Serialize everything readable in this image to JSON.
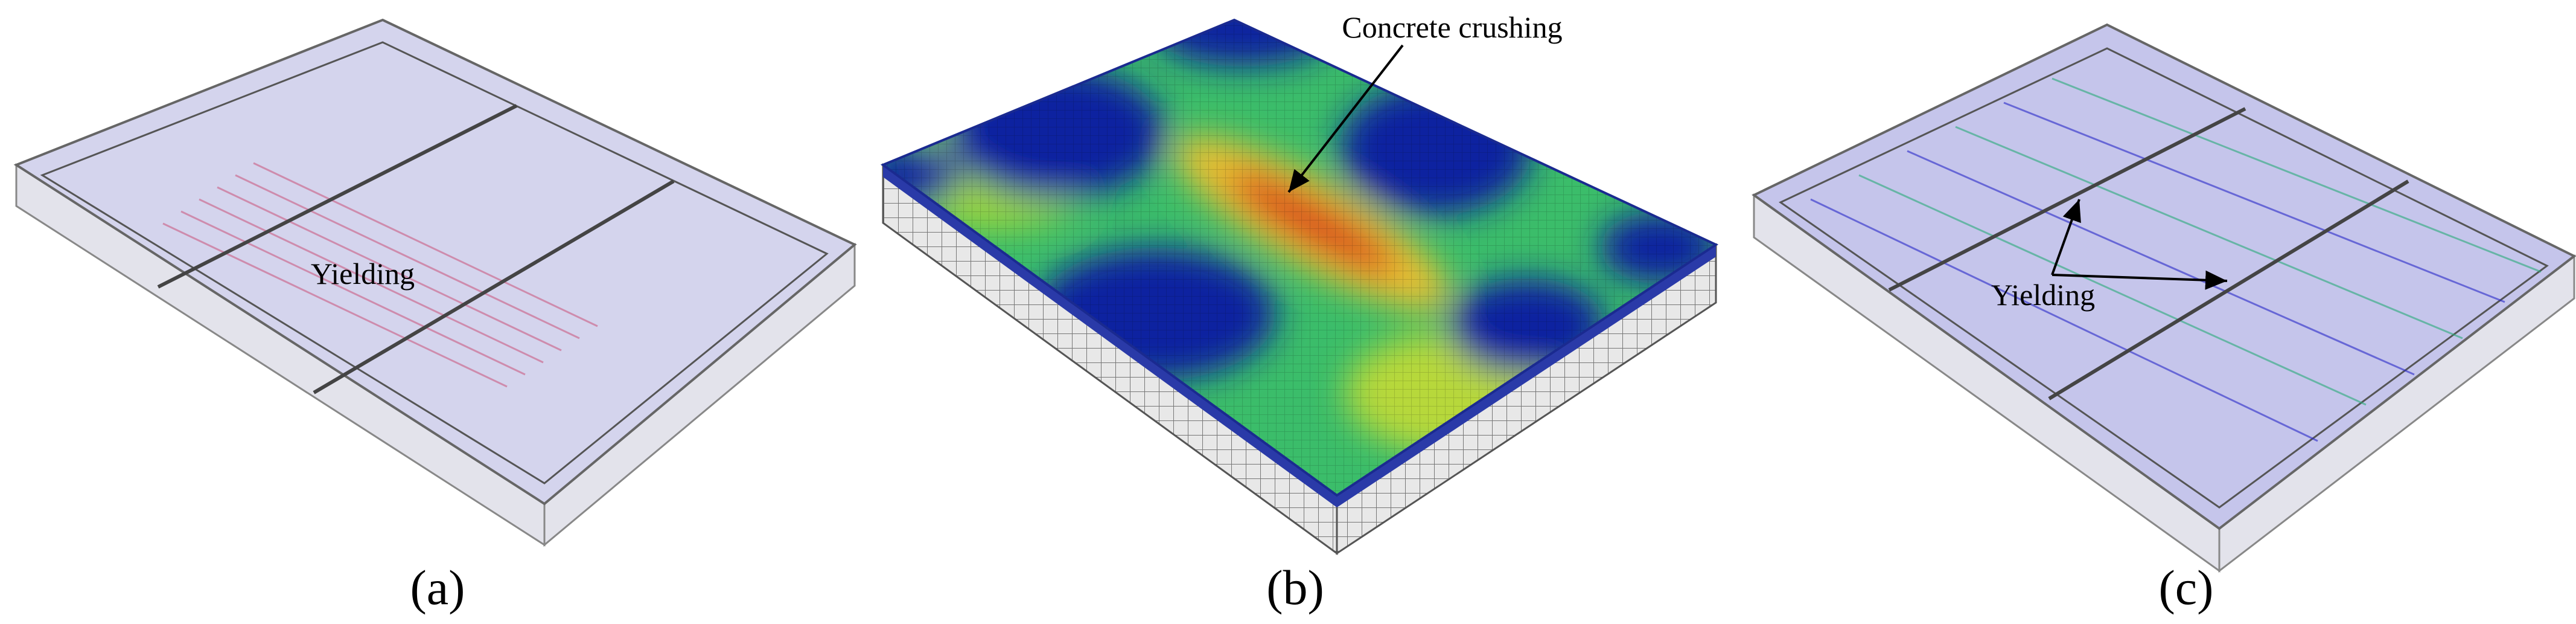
{
  "panels": [
    {
      "label": "(a)",
      "annotations": [
        "Yielding"
      ]
    },
    {
      "label": "(b)",
      "annotations": [
        "Concrete crushing"
      ]
    },
    {
      "label": "(c)",
      "annotations": [
        "Yielding"
      ]
    }
  ]
}
